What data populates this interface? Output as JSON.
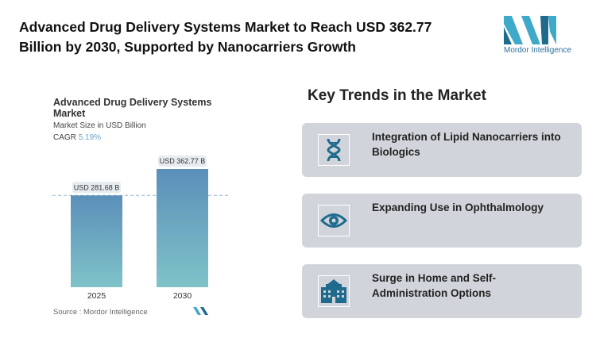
{
  "header": {
    "title": "Advanced Drug Delivery Systems Market to Reach USD 362.77 Billion by 2030, Supported by Nanocarriers Growth",
    "logo_text": "Mordor Intelligence"
  },
  "chart_data": {
    "type": "bar",
    "title": "Advanced Drug Delivery Systems Market",
    "subtitle": "Market Size in USD Billion",
    "cagr_label": "CAGR",
    "cagr_value": "5.19%",
    "categories": [
      "2025",
      "2030"
    ],
    "values": [
      281.68,
      362.77
    ],
    "data_labels": [
      "USD 281.68 B",
      "USD 362.77 B"
    ],
    "ylim": [
      0,
      362.77
    ],
    "grid": false,
    "colors": {
      "top": "#5b8fb9",
      "bottom": "#7fc3c9"
    },
    "source": "Source :  Mordor Intelligence"
  },
  "trends": {
    "heading": "Key Trends in the Market",
    "items": [
      {
        "label": "Integration of Lipid Nanocarriers into Biologics",
        "icon": "dna-icon"
      },
      {
        "label": "Expanding Use in Ophthalmology",
        "icon": "eye-icon"
      },
      {
        "label": "Surge in Home and Self-Administration Options",
        "icon": "hospital-icon"
      }
    ]
  },
  "colors": {
    "accent": "#1f6b8e",
    "card": "#d1d5db"
  }
}
